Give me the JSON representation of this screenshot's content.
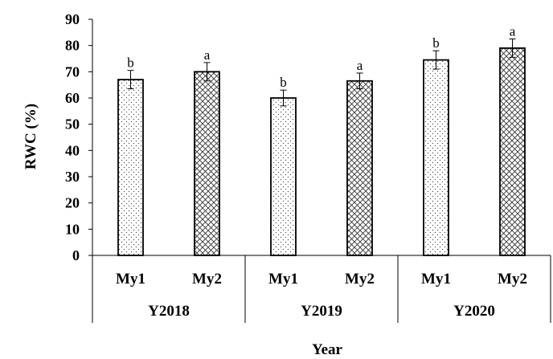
{
  "chart_data": {
    "type": "bar",
    "ylabel": "RWC (%)",
    "xlabel": "Year",
    "ylim": [
      0,
      90
    ],
    "y_ticks": [
      0,
      10,
      20,
      30,
      40,
      50,
      60,
      70,
      80,
      90
    ],
    "grid": false,
    "groups": [
      "Y2018",
      "Y2019",
      "Y2020"
    ],
    "bars": [
      {
        "group": "Y2018",
        "category": "My1",
        "value": 67,
        "error": 3.5,
        "letter": "b",
        "pattern": "dots"
      },
      {
        "group": "Y2018",
        "category": "My2",
        "value": 70,
        "error": 3.5,
        "letter": "a",
        "pattern": "crosshatch"
      },
      {
        "group": "Y2019",
        "category": "My1",
        "value": 60,
        "error": 3,
        "letter": "b",
        "pattern": "dots"
      },
      {
        "group": "Y2019",
        "category": "My2",
        "value": 66.5,
        "error": 3,
        "letter": "a",
        "pattern": "crosshatch"
      },
      {
        "group": "Y2020",
        "category": "My1",
        "value": 74.5,
        "error": 3.5,
        "letter": "b",
        "pattern": "dots"
      },
      {
        "group": "Y2020",
        "category": "My2",
        "value": 79,
        "error": 3.5,
        "letter": "a",
        "pattern": "crosshatch"
      }
    ]
  }
}
